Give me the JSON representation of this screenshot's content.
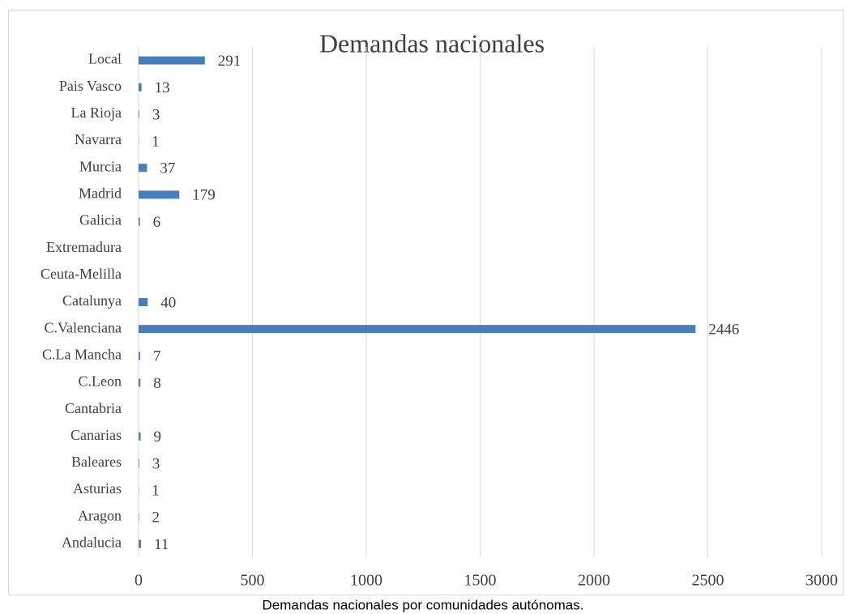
{
  "chart_data": {
    "type": "bar",
    "orientation": "horizontal",
    "title": "Demandas nacionales",
    "caption": "Demandas nacionales por comunidades autónomas.",
    "categories": [
      "Local",
      "Pais Vasco",
      "La Rioja",
      "Navarra",
      "Murcia",
      "Madrid",
      "Galicia",
      "Extremadura",
      "Ceuta-Melilla",
      "Catalunya",
      "C.Valenciana",
      "C.La Mancha",
      "C.Leon",
      "Cantabria",
      "Canarias",
      "Baleares",
      "Asturias",
      "Aragon",
      "Andalucia"
    ],
    "values": [
      291,
      13,
      3,
      1,
      37,
      179,
      6,
      null,
      null,
      40,
      2446,
      7,
      8,
      null,
      9,
      3,
      1,
      2,
      11
    ],
    "color": "#4a7ebb",
    "xlim": [
      0,
      3000
    ],
    "xticks": [
      0,
      500,
      1000,
      1500,
      2000,
      2500,
      3000
    ],
    "grid": true
  }
}
